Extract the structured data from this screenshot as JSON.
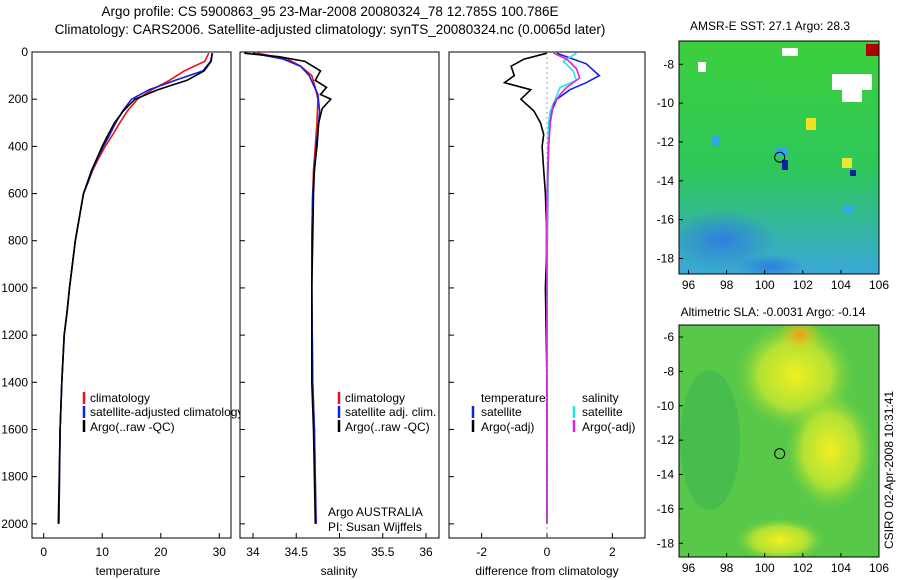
{
  "header": {
    "line1": "Argo profile: CS 5900863_95 23-Mar-2008 20080324_78 12.785S 100.786E",
    "line2": "Climatology: CARS2006. Satellite-adjusted climatology: synTS_20080324.nc (0.0065d later)"
  },
  "side_text": "CSIRO 02-Apr-2008 10:31:41",
  "colors": {
    "red": "#ee1111",
    "blue": "#1122dd",
    "black": "#000000",
    "cyan": "#22e6e6",
    "magenta": "#dd22dd"
  },
  "chart_data": [
    {
      "type": "line",
      "name": "temperature",
      "xlabel": "temperature",
      "xlim": [
        -2,
        32
      ],
      "ylim": [
        0,
        2060
      ],
      "y_inverted": true,
      "xticks": [
        0,
        10,
        20,
        30
      ],
      "yticks": [
        0,
        200,
        400,
        600,
        800,
        1000,
        1200,
        1400,
        1600,
        1800,
        2000
      ],
      "legend": [
        "climatology",
        "satellite-adjusted climatology",
        "Argo(..raw -QC)"
      ],
      "series": [
        {
          "name": "climatology",
          "color": "red",
          "x": [
            28.2,
            27.5,
            24,
            21.5,
            18.5,
            16,
            14.3,
            13,
            11.8,
            10.5,
            9.4,
            8.4,
            7.6,
            6.8,
            6.1,
            5.4,
            4.9,
            4.4,
            4,
            3.5,
            3.1,
            2.8,
            2.6
          ],
          "y": [
            5,
            40,
            80,
            120,
            160,
            200,
            250,
            300,
            350,
            400,
            450,
            500,
            550,
            600,
            700,
            800,
            900,
            1000,
            1100,
            1200,
            1400,
            1600,
            2000
          ]
        },
        {
          "name": "satellite-adjusted climatology",
          "color": "blue",
          "x": [
            28.8,
            28.5,
            27.2,
            22.5,
            18,
            15,
            13.5,
            12.3,
            11.3,
            10.2,
            9.2,
            8.3,
            7.6,
            6.8,
            6.1,
            5.4,
            4.9,
            4.4,
            4,
            3.5,
            3.1,
            2.8,
            2.6
          ],
          "y": [
            5,
            40,
            80,
            120,
            160,
            200,
            250,
            300,
            350,
            400,
            450,
            500,
            550,
            600,
            700,
            800,
            900,
            1000,
            1100,
            1200,
            1400,
            1600,
            2000
          ]
        },
        {
          "name": "Argo(..raw -QC)",
          "color": "black",
          "x": [
            28.8,
            28.6,
            27.4,
            24.5,
            19.5,
            15.6,
            13.6,
            12.1,
            11,
            10,
            9.1,
            8.2,
            7.5,
            6.8,
            6.1,
            5.4,
            4.9,
            4.4,
            4,
            3.5,
            3.1,
            2.8,
            2.5
          ],
          "y": [
            5,
            40,
            80,
            120,
            160,
            200,
            250,
            300,
            350,
            400,
            450,
            500,
            550,
            600,
            700,
            800,
            900,
            1000,
            1100,
            1200,
            1400,
            1600,
            2000
          ]
        }
      ]
    },
    {
      "type": "line",
      "name": "salinity",
      "xlabel": "salinity",
      "xlim": [
        33.85,
        36.15
      ],
      "ylim": [
        0,
        2060
      ],
      "y_inverted": true,
      "xticks": [
        34,
        34.5,
        35,
        35.5,
        36
      ],
      "legend": [
        "climatology",
        "satellite adj. clim.",
        "Argo(..raw -QC)"
      ],
      "annotation_1": "Argo AUSTRALIA",
      "annotation_2": "PI: Susan Wijffels",
      "series": [
        {
          "name": "climatology",
          "color": "red",
          "x": [
            34.05,
            34.4,
            34.55,
            34.68,
            34.72,
            34.75,
            34.74,
            34.72,
            34.7,
            34.69,
            34.68,
            34.68,
            34.69,
            34.71,
            34.73
          ],
          "y": [
            5,
            30,
            60,
            100,
            150,
            200,
            300,
            400,
            500,
            600,
            800,
            1000,
            1400,
            1600,
            2000
          ]
        },
        {
          "name": "satellite adj. clim.",
          "color": "blue",
          "x": [
            34.0,
            34.35,
            34.55,
            34.65,
            34.7,
            34.75,
            34.77,
            34.76,
            34.73,
            34.71,
            34.69,
            34.68,
            34.68,
            34.69,
            34.71,
            34.73
          ],
          "y": [
            5,
            30,
            60,
            100,
            140,
            180,
            250,
            300,
            400,
            500,
            600,
            800,
            1000,
            1400,
            1600,
            2000
          ]
        },
        {
          "name": "Argo(..raw -QC)",
          "color": "black",
          "x": [
            33.9,
            34.3,
            34.6,
            34.78,
            34.72,
            34.85,
            34.78,
            34.9,
            34.8,
            34.76,
            34.74,
            34.71,
            34.7,
            34.69,
            34.68,
            34.68,
            34.7,
            34.72
          ],
          "y": [
            5,
            20,
            40,
            80,
            120,
            150,
            180,
            200,
            240,
            300,
            400,
            500,
            600,
            800,
            1000,
            1400,
            1600,
            2000
          ]
        }
      ]
    },
    {
      "type": "line",
      "name": "difference from climatology",
      "xlabel": "difference from climatology",
      "xlim": [
        -3,
        3
      ],
      "ylim": [
        0,
        2060
      ],
      "y_inverted": true,
      "xticks": [
        -2,
        0,
        2
      ],
      "legend_temperature_title": "temperature",
      "legend_salinity_title": "salinity",
      "legend_left": [
        "satellite",
        "Argo(-adj)"
      ],
      "legend_right": [
        "satellite",
        "Argo(-adj)"
      ],
      "series": [
        {
          "name": "temperature satellite",
          "color": "blue",
          "x": [
            0.3,
            1.2,
            1.6,
            1.2,
            0.7,
            0.3,
            0.15,
            0.08,
            0.05,
            0.03,
            0.02,
            0.01,
            0,
            0,
            0,
            0
          ],
          "y": [
            5,
            50,
            100,
            130,
            160,
            200,
            250,
            300,
            400,
            500,
            600,
            800,
            1000,
            1400,
            1600,
            2000
          ]
        },
        {
          "name": "temperature Argo(-adj)",
          "color": "black",
          "x": [
            0,
            -0.7,
            -1.1,
            -1.0,
            -1.3,
            -0.5,
            -0.8,
            -0.4,
            -0.2,
            -0.1,
            -0.15,
            -0.1,
            -0.05,
            0,
            -0.05,
            0,
            0
          ],
          "y": [
            5,
            30,
            60,
            100,
            130,
            160,
            200,
            250,
            300,
            350,
            400,
            500,
            600,
            800,
            1000,
            1400,
            2000
          ]
        },
        {
          "name": "salinity satellite",
          "color": "cyan",
          "x": [
            0.9,
            0.5,
            0.8,
            0.9,
            0.4,
            0.25,
            0.1,
            0.05,
            0.03,
            0.02,
            0.01,
            0,
            0,
            0,
            0
          ],
          "y": [
            5,
            40,
            80,
            120,
            150,
            200,
            250,
            300,
            400,
            500,
            600,
            800,
            1000,
            1400,
            2000
          ]
        },
        {
          "name": "salinity Argo(-adj)",
          "color": "magenta",
          "x": [
            0.2,
            0.6,
            0.9,
            1.0,
            0.6,
            0.4,
            0.2,
            0.1,
            0.05,
            0.02,
            0,
            -0.02,
            0,
            -0.01,
            0
          ],
          "y": [
            5,
            30,
            70,
            110,
            150,
            180,
            220,
            300,
            400,
            500,
            600,
            800,
            1000,
            1400,
            2000
          ]
        }
      ]
    },
    {
      "type": "heatmap",
      "name": "sst-map",
      "title": "AMSR-E SST: 27.1 Argo: 28.3",
      "xlim": [
        95.5,
        106
      ],
      "ylim": [
        -18.8,
        -6.8
      ],
      "xticks": [
        96,
        98,
        100,
        102,
        104,
        106
      ],
      "yticks": [
        -8,
        -10,
        -12,
        -14,
        -16,
        -18
      ],
      "float_position": [
        100.786,
        -12.785
      ]
    },
    {
      "type": "heatmap",
      "name": "sla-map",
      "title": "Altimetric SLA: -0.0031 Argo: -0.14",
      "xlim": [
        95.5,
        106
      ],
      "ylim": [
        -18.8,
        -5.3
      ],
      "xticks": [
        96,
        98,
        100,
        102,
        104,
        106
      ],
      "yticks": [
        -6,
        -8,
        -10,
        -12,
        -14,
        -16,
        -18
      ],
      "float_position": [
        100.786,
        -12.785
      ]
    }
  ]
}
